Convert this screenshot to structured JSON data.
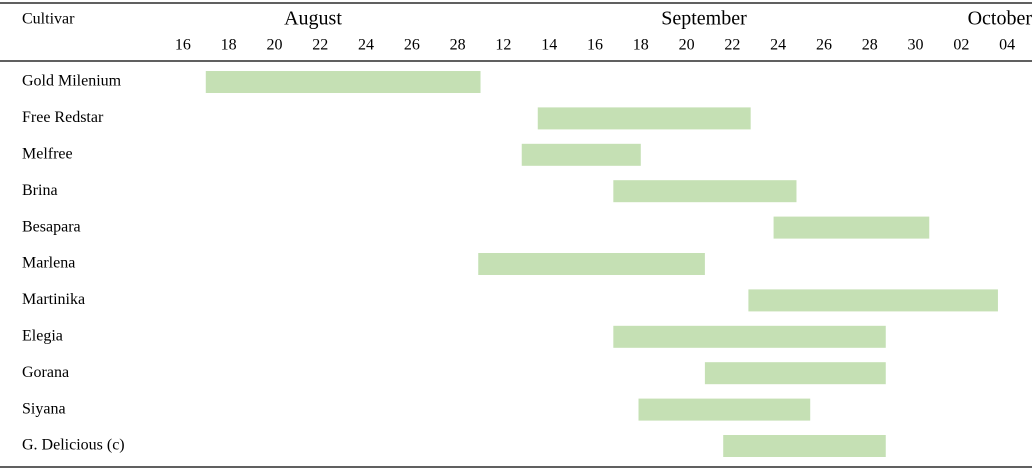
{
  "chart_data": {
    "type": "gantt",
    "header": "Cultivar",
    "months": [
      "August",
      "September",
      "October"
    ],
    "xlim": [
      -0.5,
      18.5
    ],
    "xticks": [
      {
        "value": 0,
        "label": "16"
      },
      {
        "value": 1,
        "label": "18"
      },
      {
        "value": 2,
        "label": "20"
      },
      {
        "value": 3,
        "label": "22"
      },
      {
        "value": 4,
        "label": "24"
      },
      {
        "value": 5,
        "label": "26"
      },
      {
        "value": 6,
        "label": "28"
      },
      {
        "value": 7,
        "label": "12"
      },
      {
        "value": 8,
        "label": "14"
      },
      {
        "value": 9,
        "label": "16"
      },
      {
        "value": 10,
        "label": "18"
      },
      {
        "value": 11,
        "label": "20"
      },
      {
        "value": 12,
        "label": "22"
      },
      {
        "value": 13,
        "label": "24"
      },
      {
        "value": 14,
        "label": "26"
      },
      {
        "value": 15,
        "label": "28"
      },
      {
        "value": 16,
        "label": "30"
      },
      {
        "value": 17,
        "label": "02"
      },
      {
        "value": 18,
        "label": "04"
      }
    ],
    "categories": [
      "Gold Milenium",
      "Free Redstar",
      "Melfree",
      "Brina",
      "Besapara",
      "Marlena",
      "Martinika",
      "Elegia",
      "Gorana",
      "Siyana",
      "G. Delicious (c)"
    ],
    "start": [
      0.5,
      7.75,
      7.4,
      9.4,
      12.9,
      6.45,
      12.35,
      9.4,
      11.4,
      9.95,
      11.8
    ],
    "end": [
      6.5,
      12.4,
      10.0,
      13.4,
      16.3,
      11.4,
      17.8,
      15.35,
      15.35,
      13.7,
      15.35
    ],
    "color": "#c5e0b4"
  }
}
